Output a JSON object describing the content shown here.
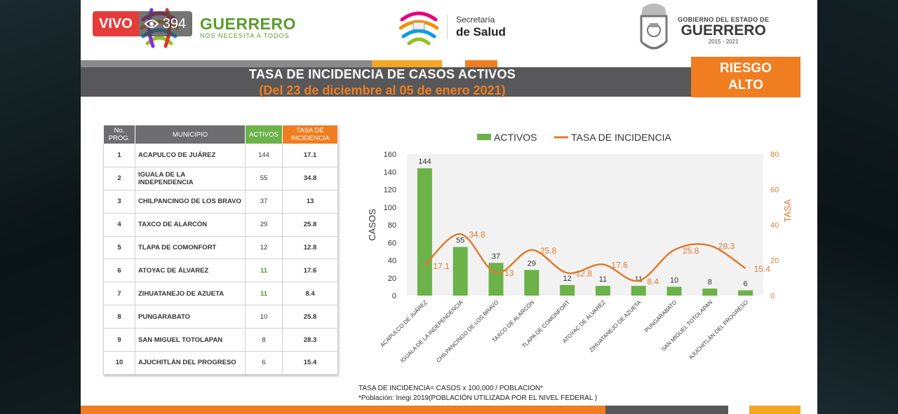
{
  "live": {
    "tag": "VIVO",
    "views": "394",
    "eye_icon": "eye-icon"
  },
  "header": {
    "guerrero_title": "GUERRERO",
    "guerrero_sub": "NOS NECESITA A TODOS",
    "salud_line1": "Secretaría",
    "salud_line2": "de Salud",
    "gob_line1": "GOBIERNO DEL ESTADO DE",
    "gob_line2": "GUERRERO",
    "gob_line3": "2015 - 2021"
  },
  "title": {
    "main": "TASA DE INCIDENCIA DE CASOS ACTIVOS",
    "sub": "(Del 23 de diciembre al 05 de enero 2021)",
    "risk_line1": "RIESGO",
    "risk_line2": "ALTO"
  },
  "table": {
    "headers": {
      "no": [
        "No.",
        "PROG."
      ],
      "municipio": "MUNICIPIO",
      "activos": "ACTIVOS",
      "tasa": [
        "TASA DE",
        "INCIDENCIA"
      ]
    },
    "rows": [
      {
        "no": "1",
        "municipio": "ACAPULCO DE JUÁREZ",
        "activos": "144",
        "tasa": "17.1"
      },
      {
        "no": "2",
        "municipio": "IGUALA DE LA INDEPENDENCIA",
        "activos": "55",
        "tasa": "34.8"
      },
      {
        "no": "3",
        "municipio": "CHILPANCINGO DE LOS BRAVO",
        "activos": "37",
        "tasa": "13"
      },
      {
        "no": "4",
        "municipio": "TAXCO DE ALARCÓN",
        "activos": "29",
        "tasa": "25.8"
      },
      {
        "no": "5",
        "municipio": "TLAPA DE COMONFORT",
        "activos": "12",
        "tasa": "12.8"
      },
      {
        "no": "6",
        "municipio": "ATOYAC DE ÁLVAREZ",
        "activos": "11",
        "tasa": "17.6"
      },
      {
        "no": "7",
        "municipio": "ZIHUATANEJO DE AZUETA",
        "activos": "11",
        "tasa": "8.4"
      },
      {
        "no": "8",
        "municipio": "PUNGARABATO",
        "activos": "10",
        "tasa": "25.8"
      },
      {
        "no": "9",
        "municipio": "SAN MIGUEL TOTOLAPAN",
        "activos": "8",
        "tasa": "28.3"
      },
      {
        "no": "10",
        "municipio": "AJUCHITLÁN DEL PROGRESO",
        "activos": "6",
        "tasa": "15.4"
      }
    ]
  },
  "chart_data": {
    "type": "bar",
    "categories": [
      "ACAPULCO DE JUÁREZ",
      "IGUALA DE LA INDEPENDENCIA",
      "CHILPANCINGO DE LOS BRAVO",
      "TAXCO DE ALARCÓN",
      "TLAPA DE COMONFORT",
      "ATOYAC DE ÁLVAREZ",
      "ZIHUATANEJO DE AZUETA",
      "PUNGARABATO",
      "SAN MIGUEL TOTOLAPAN",
      "AJUCHITLÁN DEL PROGRESO"
    ],
    "series": [
      {
        "name": "ACTIVOS",
        "type": "bar",
        "axis": "left",
        "color": "#6bb24a",
        "values": [
          144,
          55,
          37,
          29,
          12,
          11,
          11,
          10,
          8,
          6
        ]
      },
      {
        "name": "TASA DE INCIDENCIA",
        "type": "line",
        "axis": "right",
        "color": "#e07b2f",
        "values": [
          17.1,
          34.8,
          13,
          25.8,
          12.8,
          17.6,
          8.4,
          25.8,
          28.3,
          15.4
        ]
      }
    ],
    "ylabel": "CASOS",
    "y2label": "TASA",
    "ylim": [
      0,
      160
    ],
    "y2lim": [
      0,
      80
    ],
    "yticks": [
      0,
      20,
      40,
      60,
      80,
      100,
      120,
      140,
      160
    ],
    "y2ticks": [
      0,
      20,
      40,
      60,
      80
    ],
    "legend_position": "top",
    "grid": false
  },
  "footnote": {
    "line1": "TASA DE INCIDENCIA= CASOS x 100,000 / POBLACION*",
    "line2": "*Población: Inegi 2019(POBLACIÓN UTILIZADA POR EL NIVEL FEDERAL )"
  }
}
